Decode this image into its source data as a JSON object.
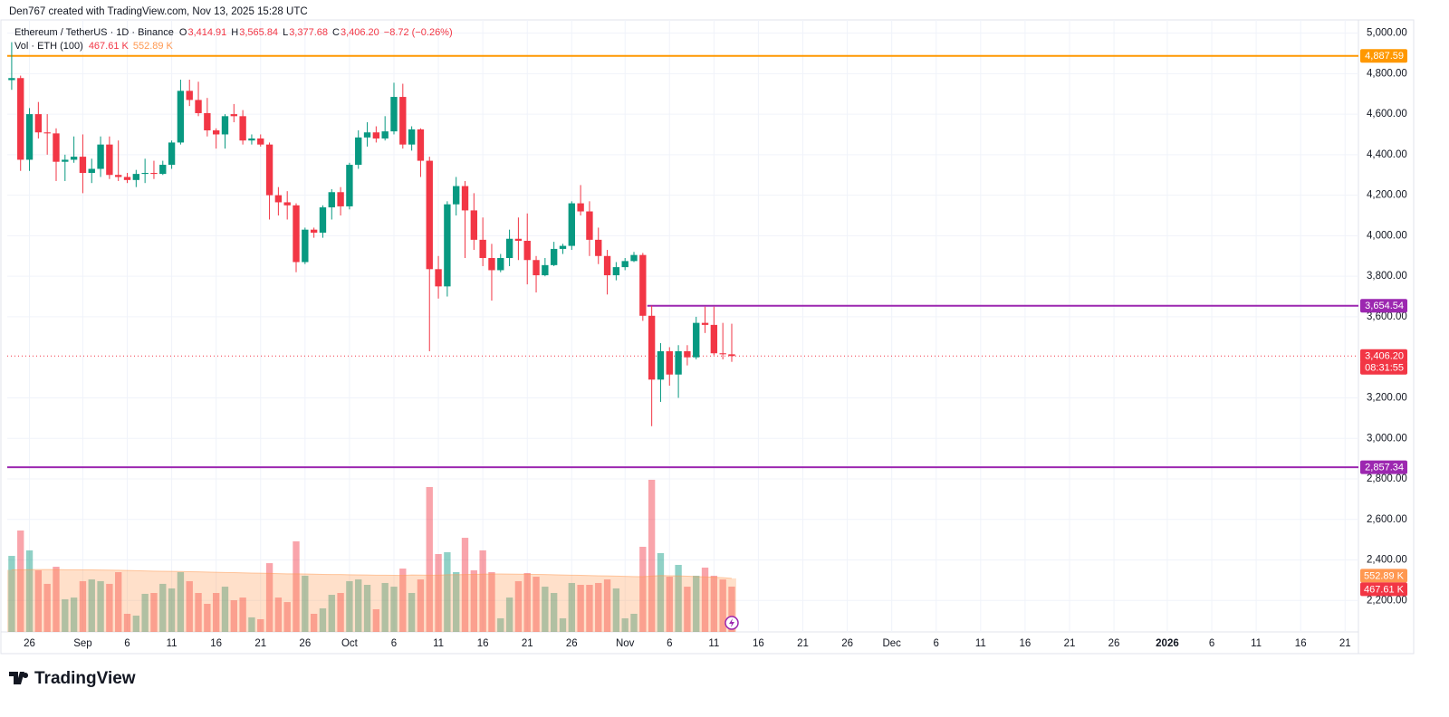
{
  "header": "Den767 created with TradingView.com, Nov 13, 2025 15:28 UTC",
  "footer": "TradingView",
  "chart_data": {
    "type": "candlestick",
    "legend": {
      "symbol": "Ethereum / TetherUS · 1D · Binance",
      "letters": [
        "O",
        "H",
        "L",
        "C"
      ],
      "open": {
        "value": 3414.91,
        "label": "3,414.91"
      },
      "high": {
        "value": 3565.84,
        "label": "3,565.84"
      },
      "low": {
        "value": 3377.68,
        "label": "3,377.68"
      },
      "close": {
        "value": 3406.2,
        "label": "3,406.20"
      },
      "change": "−8.72 (−0.26%)"
    },
    "up_color": "#089981",
    "down_color": "#f23645",
    "dates": [
      "2025-08-24",
      "2025-08-25",
      "2025-08-26",
      "2025-08-27",
      "2025-08-28",
      "2025-08-29",
      "2025-08-30",
      "2025-08-31",
      "2025-09-01",
      "2025-09-02",
      "2025-09-03",
      "2025-09-04",
      "2025-09-05",
      "2025-09-06",
      "2025-09-07",
      "2025-09-08",
      "2025-09-09",
      "2025-09-10",
      "2025-09-11",
      "2025-09-12",
      "2025-09-13",
      "2025-09-14",
      "2025-09-15",
      "2025-09-16",
      "2025-09-17",
      "2025-09-18",
      "2025-09-19",
      "2025-09-20",
      "2025-09-21",
      "2025-09-22",
      "2025-09-23",
      "2025-09-24",
      "2025-09-25",
      "2025-09-26",
      "2025-09-27",
      "2025-09-28",
      "2025-09-29",
      "2025-09-30",
      "2025-10-01",
      "2025-10-02",
      "2025-10-03",
      "2025-10-04",
      "2025-10-05",
      "2025-10-06",
      "2025-10-07",
      "2025-10-08",
      "2025-10-09",
      "2025-10-10",
      "2025-10-11",
      "2025-10-12",
      "2025-10-13",
      "2025-10-14",
      "2025-10-15",
      "2025-10-16",
      "2025-10-17",
      "2025-10-18",
      "2025-10-19",
      "2025-10-20",
      "2025-10-21",
      "2025-10-22",
      "2025-10-23",
      "2025-10-24",
      "2025-10-25",
      "2025-10-26",
      "2025-10-27",
      "2025-10-28",
      "2025-10-29",
      "2025-10-30",
      "2025-10-31",
      "2025-11-01",
      "2025-11-02",
      "2025-11-03",
      "2025-11-04",
      "2025-11-05",
      "2025-11-06",
      "2025-11-07",
      "2025-11-08",
      "2025-11-09",
      "2025-11-10",
      "2025-11-11",
      "2025-11-12",
      "2025-11-13"
    ],
    "open": [
      4768,
      4778,
      4375,
      4600,
      4510,
      4505,
      4365,
      4375,
      4390,
      4310,
      4330,
      4450,
      4300,
      4290,
      4275,
      4305,
      4310,
      4305,
      4350,
      4460,
      4715,
      4670,
      4605,
      4520,
      4500,
      4600,
      4590,
      4470,
      4480,
      4450,
      4200,
      4165,
      4150,
      3870,
      4030,
      4015,
      4140,
      4215,
      4145,
      4350,
      4485,
      4510,
      4480,
      4515,
      4685,
      4450,
      4525,
      4370,
      3835,
      3750,
      4155,
      4245,
      4125,
      3980,
      3890,
      3830,
      3890,
      3985,
      3975,
      3880,
      3805,
      3855,
      3935,
      3950,
      4160,
      4120,
      3980,
      3900,
      3805,
      3845,
      3875,
      3905,
      3605,
      3290,
      3430,
      3315,
      3430,
      3400,
      3570,
      3560,
      3420,
      3414.91
    ],
    "high": [
      4955,
      4790,
      4630,
      4660,
      4600,
      4530,
      4400,
      4490,
      4500,
      4380,
      4490,
      4490,
      4470,
      4310,
      4325,
      4380,
      4370,
      4370,
      4470,
      4770,
      4770,
      4760,
      4680,
      4530,
      4600,
      4650,
      4620,
      4500,
      4500,
      4460,
      4240,
      4220,
      4160,
      4040,
      4040,
      4150,
      4230,
      4240,
      4360,
      4520,
      4560,
      4540,
      4590,
      4755,
      4750,
      4540,
      4530,
      4390,
      3900,
      4170,
      4290,
      4270,
      4210,
      4090,
      3960,
      3910,
      4030,
      4090,
      4110,
      3900,
      3890,
      3970,
      3960,
      4170,
      4250,
      4170,
      4040,
      3930,
      3870,
      3890,
      3920,
      3915,
      3655,
      3470,
      3450,
      3460,
      3460,
      3600,
      3650,
      3650,
      3570,
      3565.84
    ],
    "low": [
      4720,
      4320,
      4320,
      4480,
      4400,
      4270,
      4270,
      4360,
      4210,
      4260,
      4290,
      4280,
      4270,
      4260,
      4240,
      4260,
      4280,
      4300,
      4330,
      4450,
      4640,
      4590,
      4490,
      4430,
      4430,
      4560,
      4450,
      4450,
      4440,
      4080,
      4100,
      4080,
      3820,
      3860,
      3990,
      3990,
      4080,
      4100,
      4130,
      4330,
      4440,
      4460,
      4470,
      4500,
      4430,
      4420,
      4290,
      3430,
      3690,
      3700,
      4100,
      3890,
      3930,
      3850,
      3680,
      3820,
      3850,
      3880,
      3760,
      3720,
      3800,
      3850,
      3910,
      3930,
      4100,
      3900,
      3860,
      3710,
      3780,
      3830,
      3870,
      3580,
      3060,
      3180,
      3260,
      3200,
      3360,
      3390,
      3520,
      3410,
      3390,
      3377.68
    ],
    "close": [
      4778,
      4375,
      4600,
      4510,
      4505,
      4365,
      4375,
      4390,
      4310,
      4330,
      4450,
      4300,
      4290,
      4275,
      4305,
      4310,
      4305,
      4350,
      4460,
      4715,
      4670,
      4605,
      4520,
      4500,
      4590,
      4590,
      4470,
      4480,
      4450,
      4200,
      4165,
      4150,
      3870,
      4030,
      4015,
      4140,
      4215,
      4145,
      4350,
      4485,
      4510,
      4480,
      4515,
      4685,
      4450,
      4525,
      4370,
      3835,
      3750,
      4155,
      4245,
      4125,
      3980,
      3890,
      3830,
      3890,
      3985,
      3975,
      3880,
      3805,
      3855,
      3935,
      3950,
      4160,
      4120,
      3980,
      3900,
      3805,
      3845,
      3875,
      3905,
      3605,
      3290,
      3430,
      3315,
      3430,
      3400,
      3570,
      3560,
      3420,
      3415,
      3406.2
    ],
    "xlim": [
      "2025-08-24",
      "2026-01-22"
    ],
    "xticks": [
      {
        "value": "2025-08-26",
        "label": "26"
      },
      {
        "value": "2025-09-01",
        "label": "Sep"
      },
      {
        "value": "2025-09-06",
        "label": "6"
      },
      {
        "value": "2025-09-11",
        "label": "11"
      },
      {
        "value": "2025-09-16",
        "label": "16"
      },
      {
        "value": "2025-09-21",
        "label": "21"
      },
      {
        "value": "2025-09-26",
        "label": "26"
      },
      {
        "value": "2025-10-01",
        "label": "Oct"
      },
      {
        "value": "2025-10-06",
        "label": "6"
      },
      {
        "value": "2025-10-11",
        "label": "11"
      },
      {
        "value": "2025-10-16",
        "label": "16"
      },
      {
        "value": "2025-10-21",
        "label": "21"
      },
      {
        "value": "2025-10-26",
        "label": "26"
      },
      {
        "value": "2025-11-01",
        "label": "Nov"
      },
      {
        "value": "2025-11-06",
        "label": "6"
      },
      {
        "value": "2025-11-11",
        "label": "11"
      },
      {
        "value": "2025-11-16",
        "label": "16"
      },
      {
        "value": "2025-11-21",
        "label": "21"
      },
      {
        "value": "2025-11-26",
        "label": "26"
      },
      {
        "value": "2025-12-01",
        "label": "Dec"
      },
      {
        "value": "2025-12-06",
        "label": "6"
      },
      {
        "value": "2025-12-11",
        "label": "11"
      },
      {
        "value": "2025-12-16",
        "label": "16"
      },
      {
        "value": "2025-12-21",
        "label": "21"
      },
      {
        "value": "2025-12-26",
        "label": "26"
      },
      {
        "value": "2026-01-01",
        "label": "2026"
      },
      {
        "value": "2026-01-06",
        "label": "6"
      },
      {
        "value": "2026-01-11",
        "label": "11"
      },
      {
        "value": "2026-01-16",
        "label": "16"
      },
      {
        "value": "2026-01-21",
        "label": "21"
      }
    ],
    "ylim": [
      2045,
      5065
    ],
    "yticks": [
      {
        "value": 5000,
        "label": "5,000.00"
      },
      {
        "value": 4800,
        "label": "4,800.00"
      },
      {
        "value": 4600,
        "label": "4,600.00"
      },
      {
        "value": 4400,
        "label": "4,400.00"
      },
      {
        "value": 4200,
        "label": "4,200.00"
      },
      {
        "value": 4000,
        "label": "4,000.00"
      },
      {
        "value": 3800,
        "label": "3,800.00"
      },
      {
        "value": 3600,
        "label": "3,600.00"
      },
      {
        "value": 3200,
        "label": "3,200.00"
      },
      {
        "value": 3000,
        "label": "3,000.00"
      },
      {
        "value": 2800,
        "label": "2,800.00"
      },
      {
        "value": 2600,
        "label": "2,600.00"
      },
      {
        "value": 2400,
        "label": "2,400.00"
      },
      {
        "value": 2200,
        "label": "2,200.00"
      }
    ],
    "grid": true,
    "hlines": [
      {
        "value": 4887.59,
        "label": "4,887.59",
        "color": "#ff9800"
      },
      {
        "value": 3654.54,
        "label": "3,654.54",
        "color": "#9c27b0",
        "start": "2025-11-04"
      },
      {
        "value": 2857.34,
        "label": "2,857.34",
        "color": "#9c27b0"
      }
    ],
    "last_price": {
      "value": 3406.2,
      "label": "3,406.20",
      "countdown": "08:31:55"
    },
    "volume": {
      "title": "Vol · ETH (100)",
      "ylim": [
        0,
        6320
      ],
      "values": [
        785,
        1047,
        842,
        636,
        496,
        673,
        337,
        355,
        524,
        542,
        524,
        496,
        617,
        187,
        168,
        393,
        402,
        496,
        449,
        617,
        524,
        402,
        290,
        402,
        467,
        327,
        355,
        150,
        131,
        710,
        355,
        308,
        935,
        580,
        187,
        243,
        383,
        402,
        524,
        542,
        486,
        234,
        505,
        467,
        654,
        402,
        542,
        1496,
        804,
        823,
        617,
        972,
        636,
        842,
        617,
        140,
        355,
        524,
        608,
        570,
        467,
        402,
        140,
        505,
        486,
        486,
        505,
        542,
        449,
        140,
        187,
        879,
        1571,
        814,
        570,
        692,
        467,
        580,
        664,
        580,
        542,
        467.61
      ],
      "last_value_label": {
        "value": 467.61,
        "label": "467.61 K"
      },
      "ma_color": "#ff9850",
      "ma": [
        640,
        641,
        643,
        644,
        644,
        644,
        642,
        641,
        640,
        640,
        639,
        638,
        637,
        635,
        632,
        630,
        628,
        626,
        625,
        624,
        622,
        620,
        618,
        616,
        614,
        612,
        610,
        608,
        606,
        604,
        602,
        600,
        600,
        598,
        596,
        594,
        593,
        592,
        590,
        589,
        588,
        586,
        585,
        584,
        583,
        588,
        587,
        586,
        585,
        590,
        591,
        592,
        594,
        596,
        598,
        598,
        597,
        596,
        595,
        594,
        592,
        590,
        588,
        586,
        584,
        582,
        580,
        578,
        576,
        574,
        572,
        570,
        576,
        582,
        580,
        578,
        575,
        572,
        568,
        564,
        560,
        552.89
      ],
      "ma_last_value_label": {
        "value": 552.89,
        "label": "552.89 K"
      }
    }
  }
}
